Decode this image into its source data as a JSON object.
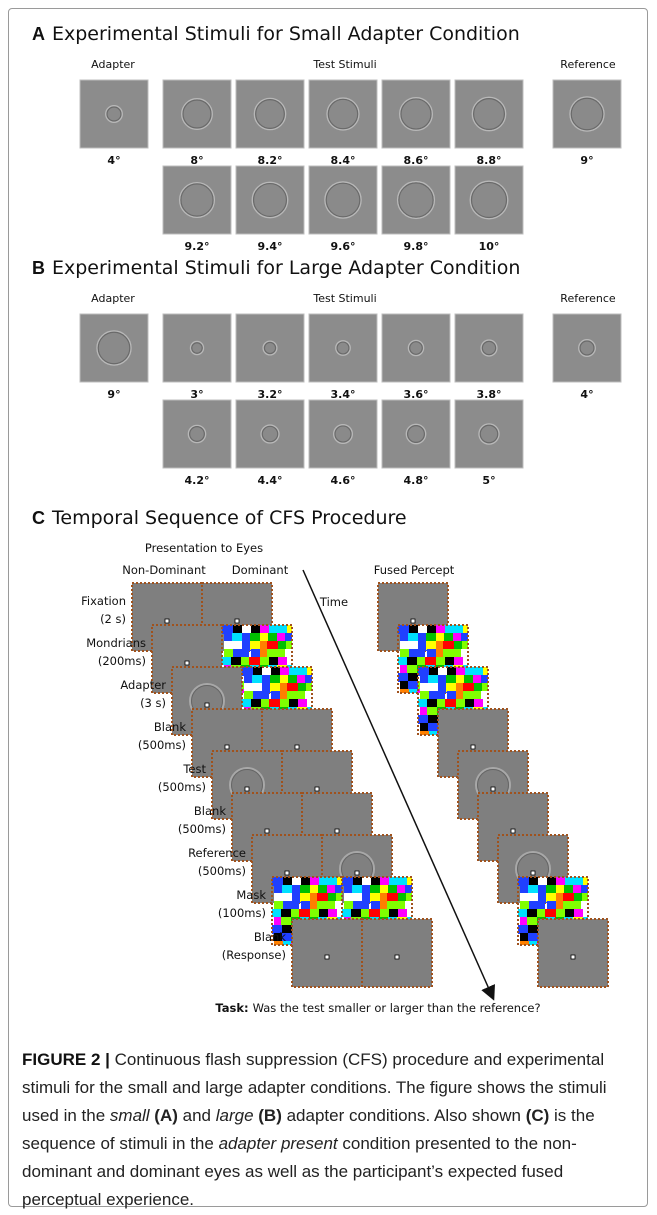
{
  "panels": [
    {
      "label": "A",
      "title": "Experimental Stimuli for Small Adapter Condition",
      "headings": [
        "Adapter",
        "Test Stimuli",
        "Reference"
      ],
      "adapter": "4°",
      "tests": [
        "8°",
        "8.2°",
        "8.4°",
        "8.6°",
        "8.8°",
        "9.2°",
        "9.4°",
        "9.6°",
        "9.8°",
        "10°"
      ],
      "reference": "9°"
    },
    {
      "label": "B",
      "title": "Experimental Stimuli for Large Adapter Condition",
      "headings": [
        "Adapter",
        "Test Stimuli",
        "Reference"
      ],
      "adapter": "9°",
      "tests": [
        "3°",
        "3.2°",
        "3.4°",
        "3.6°",
        "3.8°",
        "4.2°",
        "4.4°",
        "4.6°",
        "4.8°",
        "5°"
      ],
      "reference": "4°"
    }
  ],
  "sequence": {
    "label": "C",
    "title": "Temporal Sequence of CFS Procedure",
    "header": "Presentation to Eyes",
    "eyes": [
      "Non-Dominant",
      "Dominant"
    ],
    "time": "Time",
    "fused": "Fused Percept",
    "steps": [
      {
        "name": "Fixation",
        "duration": "(2 s)"
      },
      {
        "name": "Mondrians",
        "duration": "(200ms)"
      },
      {
        "name": "Adapter",
        "duration": "(3 s)"
      },
      {
        "name": "Blank",
        "duration": "(500ms)"
      },
      {
        "name": "Test",
        "duration": "(500ms)"
      },
      {
        "name": "Blank",
        "duration": "(500ms)"
      },
      {
        "name": "Reference",
        "duration": "(500ms)"
      },
      {
        "name": "Mask",
        "duration": "(100ms)"
      },
      {
        "name": "Blank",
        "duration": "(Response)"
      }
    ],
    "task_label": "Task:",
    "task": "Was the test smaller or larger than the reference?"
  },
  "caption": {
    "label": "FIGURE 2 |",
    "segments": [
      {
        "text": " Continuous flash suppression (CFS) procedure and experimental stimuli for the small and large adapter conditions. The figure shows the stimuli used in the "
      },
      {
        "text": "small",
        "style": "italic"
      },
      {
        "text": " (A)",
        "style": "bold"
      },
      {
        "text": " and "
      },
      {
        "text": "large",
        "style": "italic"
      },
      {
        "text": " (B)",
        "style": "bold"
      },
      {
        "text": " adapter conditions. Also shown "
      },
      {
        "text": "(C)",
        "style": "bold"
      },
      {
        "text": " is the sequence of stimuli in the "
      },
      {
        "text": "adapter present",
        "style": "italic"
      },
      {
        "text": " condition presented to the non-dominant and dominant eyes as well as the participant’s expected fused perceptual experience."
      }
    ]
  }
}
